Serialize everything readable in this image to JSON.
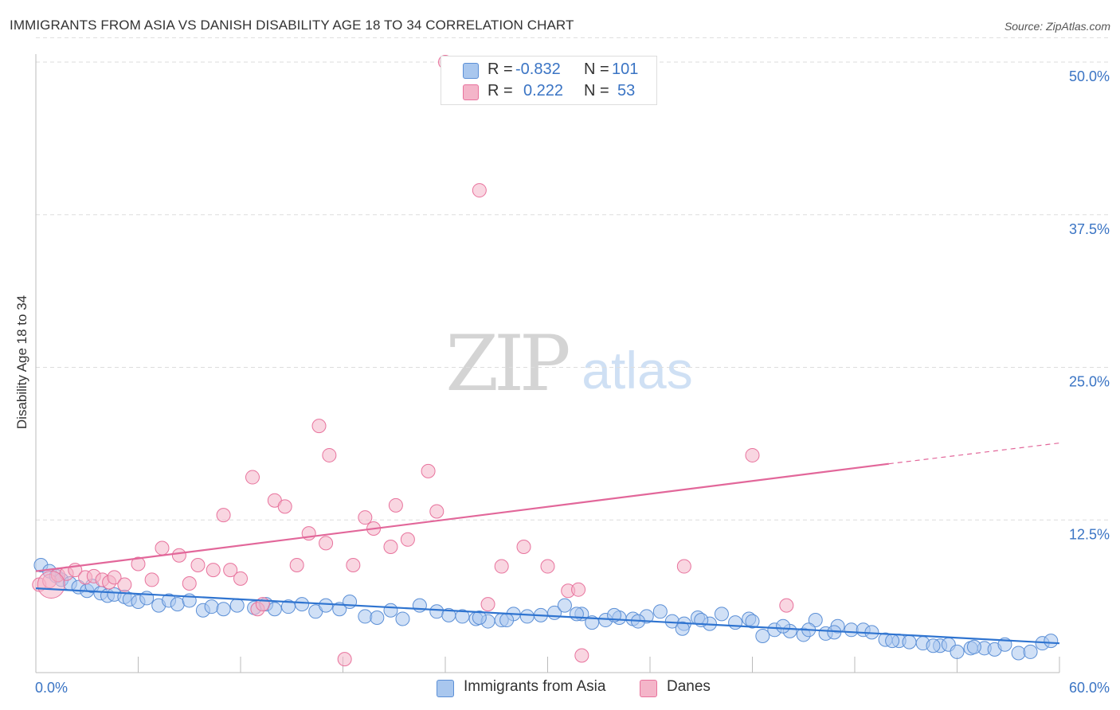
{
  "title": "IMMIGRANTS FROM ASIA VS DANISH DISABILITY AGE 18 TO 34 CORRELATION CHART",
  "source": "Source: ZipAtlas.com",
  "watermark": {
    "zip": "ZIP",
    "atlas": "atlas"
  },
  "legend": {
    "series1": {
      "r_label": "R =",
      "r_value": "-0.832",
      "n_label": "N =",
      "n_value": "101"
    },
    "series2": {
      "r_label": "R =",
      "r_value": "0.222",
      "n_label": "N =",
      "n_value": "53"
    }
  },
  "colors": {
    "blue": "#5b8fd6",
    "blue_fill": "#a9c7ee",
    "pink": "#e8739d",
    "pink_fill": "#f4b5c9",
    "grid": "#dddddd",
    "tick_text": "#3a74c4"
  },
  "chart_data": {
    "type": "scatter",
    "title": "IMMIGRANTS FROM ASIA VS DANISH DISABILITY AGE 18 TO 34 CORRELATION CHART",
    "xlabel": "",
    "ylabel": "Disability Age 18 to 34",
    "xlim": [
      0,
      60
    ],
    "ylim": [
      0,
      52
    ],
    "x_tick_labels": [
      "0.0%",
      "60.0%"
    ],
    "y_ticks": [
      12.5,
      25.0,
      37.5,
      50.0
    ],
    "y_tick_labels": [
      "12.5%",
      "25.0%",
      "37.5%",
      "50.0%"
    ],
    "series": [
      {
        "name": "Immigrants from Asia",
        "color": "#5b8fd6",
        "r": -0.832,
        "n": 101,
        "trend": {
          "x": [
            0,
            60
          ],
          "y": [
            6.9,
            2.4
          ]
        },
        "points": [
          [
            0.3,
            8.8
          ],
          [
            0.8,
            8.3
          ],
          [
            1.2,
            7.9
          ],
          [
            1.5,
            7.6
          ],
          [
            2.0,
            7.3
          ],
          [
            2.5,
            7.0
          ],
          [
            3.0,
            6.7
          ],
          [
            3.3,
            7.1
          ],
          [
            3.8,
            6.5
          ],
          [
            4.2,
            6.3
          ],
          [
            4.6,
            6.4
          ],
          [
            5.2,
            6.2
          ],
          [
            5.5,
            6.0
          ],
          [
            6.0,
            5.8
          ],
          [
            6.5,
            6.1
          ],
          [
            7.2,
            5.5
          ],
          [
            7.8,
            5.9
          ],
          [
            8.3,
            5.6
          ],
          [
            9.0,
            5.9
          ],
          [
            9.8,
            5.1
          ],
          [
            10.3,
            5.4
          ],
          [
            11.0,
            5.2
          ],
          [
            11.8,
            5.5
          ],
          [
            12.8,
            5.3
          ],
          [
            13.5,
            5.6
          ],
          [
            14.0,
            5.2
          ],
          [
            14.8,
            5.4
          ],
          [
            15.6,
            5.6
          ],
          [
            16.4,
            5.0
          ],
          [
            17.0,
            5.5
          ],
          [
            17.8,
            5.2
          ],
          [
            18.4,
            5.8
          ],
          [
            19.3,
            4.6
          ],
          [
            20.0,
            4.5
          ],
          [
            20.8,
            5.1
          ],
          [
            21.5,
            4.4
          ],
          [
            22.5,
            5.5
          ],
          [
            23.5,
            5.0
          ],
          [
            24.2,
            4.7
          ],
          [
            25.0,
            4.6
          ],
          [
            25.8,
            4.4
          ],
          [
            26.5,
            4.2
          ],
          [
            27.3,
            4.3
          ],
          [
            28.0,
            4.8
          ],
          [
            28.8,
            4.6
          ],
          [
            29.6,
            4.7
          ],
          [
            30.4,
            4.9
          ],
          [
            31.0,
            5.5
          ],
          [
            32.0,
            4.8
          ],
          [
            32.6,
            4.1
          ],
          [
            33.4,
            4.3
          ],
          [
            34.2,
            4.5
          ],
          [
            35.0,
            4.4
          ],
          [
            35.8,
            4.6
          ],
          [
            36.6,
            5.0
          ],
          [
            37.3,
            4.2
          ],
          [
            38.0,
            4.0
          ],
          [
            38.8,
            4.5
          ],
          [
            39.5,
            4.0
          ],
          [
            40.2,
            4.8
          ],
          [
            41.0,
            4.1
          ],
          [
            41.8,
            4.4
          ],
          [
            42.6,
            3.0
          ],
          [
            43.3,
            3.5
          ],
          [
            44.2,
            3.4
          ],
          [
            45.0,
            3.1
          ],
          [
            45.7,
            4.3
          ],
          [
            46.3,
            3.2
          ],
          [
            47.0,
            3.8
          ],
          [
            47.8,
            3.5
          ],
          [
            48.5,
            3.5
          ],
          [
            49.0,
            3.3
          ],
          [
            49.8,
            2.7
          ],
          [
            50.6,
            2.6
          ],
          [
            51.2,
            2.5
          ],
          [
            52.0,
            2.4
          ],
          [
            53.0,
            2.2
          ],
          [
            53.5,
            2.3
          ],
          [
            54.0,
            1.7
          ],
          [
            54.8,
            2.0
          ],
          [
            55.6,
            2.0
          ],
          [
            56.2,
            1.9
          ],
          [
            56.8,
            2.3
          ],
          [
            57.6,
            1.6
          ],
          [
            58.3,
            1.7
          ],
          [
            59.0,
            2.4
          ],
          [
            59.5,
            2.6
          ],
          [
            27.6,
            4.3
          ],
          [
            26.0,
            4.5
          ],
          [
            31.7,
            4.8
          ],
          [
            33.9,
            4.7
          ],
          [
            35.3,
            4.2
          ],
          [
            37.9,
            3.6
          ],
          [
            39.0,
            4.3
          ],
          [
            42.0,
            4.2
          ],
          [
            43.8,
            3.8
          ],
          [
            45.3,
            3.5
          ],
          [
            46.8,
            3.3
          ],
          [
            50.2,
            2.6
          ],
          [
            52.6,
            2.2
          ],
          [
            55.0,
            2.1
          ]
        ]
      },
      {
        "name": "Danes",
        "color": "#e8739d",
        "r": 0.222,
        "n": 53,
        "trend": {
          "x": [
            0,
            50
          ],
          "y": [
            8.3,
            17.1
          ],
          "dash_to": {
            "x": 60,
            "y": 18.8
          }
        },
        "points": [
          [
            0.2,
            7.2
          ],
          [
            0.8,
            7.5
          ],
          [
            1.3,
            8.0
          ],
          [
            1.8,
            8.1
          ],
          [
            2.3,
            8.4
          ],
          [
            2.9,
            7.8
          ],
          [
            3.4,
            7.9
          ],
          [
            3.9,
            7.6
          ],
          [
            4.3,
            7.4
          ],
          [
            4.6,
            7.8
          ],
          [
            5.2,
            7.2
          ],
          [
            6.0,
            8.9
          ],
          [
            6.8,
            7.6
          ],
          [
            7.4,
            10.2
          ],
          [
            8.4,
            9.6
          ],
          [
            9.0,
            7.3
          ],
          [
            9.5,
            8.8
          ],
          [
            10.4,
            8.4
          ],
          [
            11.0,
            12.9
          ],
          [
            11.4,
            8.4
          ],
          [
            12.0,
            7.7
          ],
          [
            12.7,
            16.0
          ],
          [
            13.0,
            5.2
          ],
          [
            13.3,
            5.6
          ],
          [
            14.0,
            14.1
          ],
          [
            14.6,
            13.6
          ],
          [
            15.3,
            8.8
          ],
          [
            16.0,
            11.4
          ],
          [
            16.6,
            20.2
          ],
          [
            17.0,
            10.6
          ],
          [
            17.2,
            17.8
          ],
          [
            18.1,
            1.1
          ],
          [
            18.6,
            8.8
          ],
          [
            19.3,
            12.7
          ],
          [
            19.8,
            11.8
          ],
          [
            20.8,
            10.3
          ],
          [
            21.1,
            13.7
          ],
          [
            21.8,
            10.9
          ],
          [
            23.0,
            16.5
          ],
          [
            23.5,
            13.2
          ],
          [
            24.0,
            50.0
          ],
          [
            26.0,
            39.5
          ],
          [
            26.5,
            5.6
          ],
          [
            27.3,
            8.7
          ],
          [
            28.6,
            10.3
          ],
          [
            30.0,
            8.7
          ],
          [
            31.2,
            6.7
          ],
          [
            31.8,
            6.8
          ],
          [
            32.0,
            1.4
          ],
          [
            38.0,
            8.7
          ],
          [
            42.0,
            17.8
          ],
          [
            44.0,
            5.5
          ],
          [
            0.9,
            7.2
          ]
        ]
      }
    ]
  },
  "bottom_legend": {
    "series1_label": "Immigrants from Asia",
    "series2_label": "Danes"
  }
}
